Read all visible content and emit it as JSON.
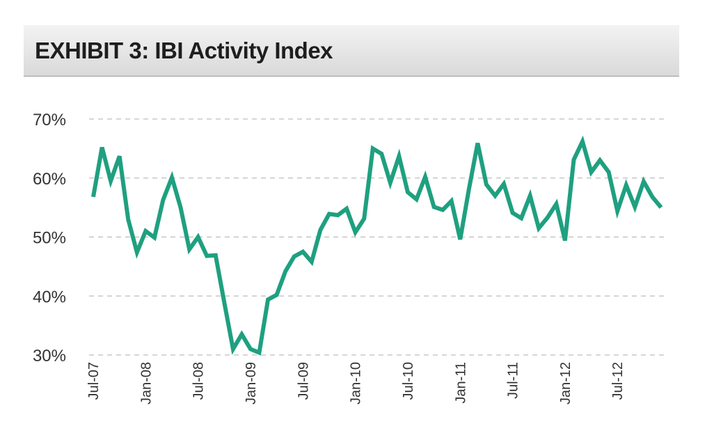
{
  "title": "EXHIBIT 3:  IBI Activity Index",
  "colors": {
    "line": "#1fa080",
    "grid": "#bdbdbd",
    "title_bg": "#e4e4e4"
  },
  "chart_data": {
    "type": "line",
    "title": "EXHIBIT 3:  IBI Activity Index",
    "xlabel": "",
    "ylabel": "",
    "ylim": [
      30,
      70
    ],
    "yticks": [
      30,
      40,
      50,
      60,
      70
    ],
    "ytick_labels": [
      "30%",
      "40%",
      "50%",
      "60%",
      "70%"
    ],
    "grid": true,
    "x_tick_labels": [
      {
        "label": "Jul-07",
        "index": 0
      },
      {
        "label": "Jan-08",
        "index": 6
      },
      {
        "label": "Jul-08",
        "index": 12
      },
      {
        "label": "Jan-09",
        "index": 18
      },
      {
        "label": "Jul-09",
        "index": 24
      },
      {
        "label": "Jan-10",
        "index": 30
      },
      {
        "label": "Jul-10",
        "index": 36
      },
      {
        "label": "Jan-11",
        "index": 42
      },
      {
        "label": "Jul-11",
        "index": 48
      },
      {
        "label": "Jan-12",
        "index": 54
      },
      {
        "label": "Jul-12",
        "index": 60
      }
    ],
    "series": [
      {
        "name": "IBI Activity Index",
        "values": [
          56.8,
          65.2,
          59.5,
          63.7,
          53.0,
          47.4,
          51.0,
          49.9,
          56.3,
          60.1,
          55.0,
          47.9,
          50.0,
          46.8,
          46.9,
          38.9,
          31.0,
          33.5,
          31.0,
          30.4,
          39.4,
          40.2,
          44.2,
          46.7,
          47.5,
          45.8,
          51.2,
          53.9,
          53.7,
          54.8,
          50.8,
          53.1,
          65.0,
          64.1,
          59.2,
          63.7,
          57.6,
          56.4,
          60.2,
          55.1,
          54.6,
          56.1,
          49.6,
          58.1,
          65.9,
          58.9,
          57.0,
          59.0,
          54.1,
          53.2,
          57.0,
          51.5,
          53.3,
          55.6,
          49.4,
          63.1,
          66.2,
          61.0,
          63.0,
          61.0,
          54.4,
          58.8,
          55.1,
          59.4,
          56.8,
          55.0
        ]
      }
    ]
  }
}
